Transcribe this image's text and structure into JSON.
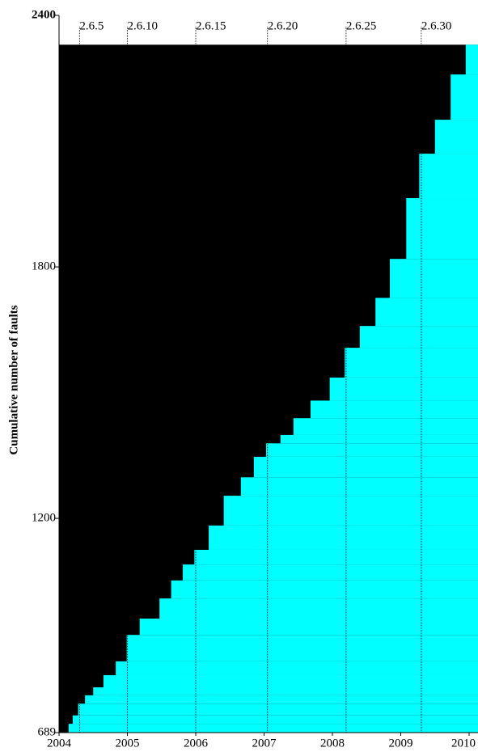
{
  "chart_data": {
    "type": "step-area",
    "y_label": "Cumulative number of faults",
    "x": [
      2004.14,
      2004.2,
      2004.28,
      2004.38,
      2004.5,
      2004.65,
      2004.83,
      2004.99,
      2005.18,
      2005.47,
      2005.64,
      2005.81,
      2005.98,
      2006.19,
      2006.41,
      2006.66,
      2006.85,
      2007.03,
      2007.24,
      2007.43,
      2007.68,
      2007.96,
      2008.18,
      2008.4,
      2008.63,
      2008.84,
      2009.08,
      2009.27,
      2009.5,
      2009.73,
      2009.95
    ],
    "values": [
      710,
      730,
      758,
      778,
      797,
      826,
      859,
      922,
      961,
      1009,
      1052,
      1090,
      1125,
      1183,
      1254,
      1298,
      1347,
      1379,
      1399,
      1439,
      1481,
      1536,
      1607,
      1659,
      1726,
      1819,
      1964,
      2070,
      2151,
      2259,
      2330
    ],
    "color": "#00ffff",
    "background_color": "#000000",
    "xlim": [
      2004,
      2010.13
    ],
    "xticks": [
      2004,
      2005,
      2006,
      2007,
      2008,
      2009,
      2010
    ],
    "ylim": [
      689,
      2400
    ],
    "yticks": [
      689,
      1200,
      1800,
      2400
    ],
    "versions": [
      {
        "value": 2004.3,
        "label": "2.6.5"
      },
      {
        "value": 2005.0,
        "label": "2.6.10"
      },
      {
        "value": 2006.0,
        "label": "2.6.15"
      },
      {
        "value": 2007.05,
        "label": "2.6.20"
      },
      {
        "value": 2008.2,
        "label": "2.6.25"
      },
      {
        "value": 2009.3,
        "label": "2.6.30"
      }
    ]
  }
}
